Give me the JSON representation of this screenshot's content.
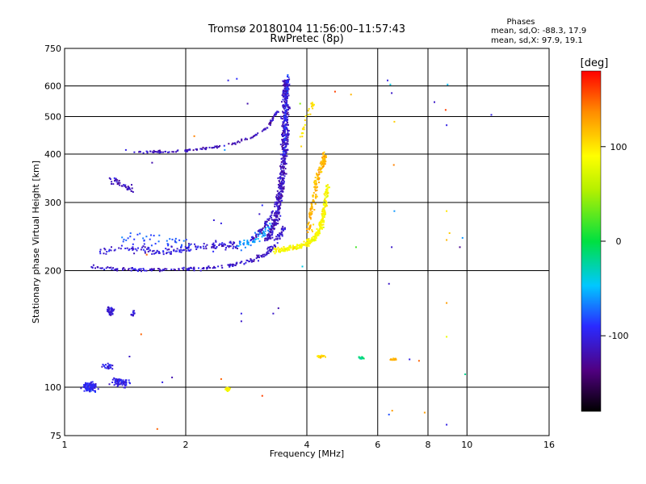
{
  "chart_data": {
    "type": "scatter",
    "title": "Tromsø 20180104 11:56:00–11:57:43",
    "subtitle": "RwPretec (8p)",
    "xlabel": "Frequency [MHz]",
    "ylabel": "Stationary phase Virtual Height [km]",
    "x_scale": "log",
    "y_scale": "log",
    "xlim": [
      1,
      16
    ],
    "ylim": [
      75,
      750
    ],
    "x_ticks": [
      1,
      2,
      4,
      6,
      8,
      10,
      16
    ],
    "x_tick_labels": [
      "1",
      "2",
      "4",
      "6",
      "8",
      "10",
      "16"
    ],
    "y_ticks": [
      75,
      100,
      200,
      300,
      400,
      500,
      600,
      750
    ],
    "y_tick_labels": [
      "75",
      "100",
      "200",
      "300",
      "400",
      "500",
      "600",
      "750"
    ],
    "grid": true,
    "stats": {
      "heading": "Phases",
      "o_line": "mean, sd,O:  -88.3, 17.9",
      "x_line": "mean, sd,X:  97.9, 19.1"
    },
    "colorbar": {
      "label": "[deg]",
      "range": [
        -180,
        180
      ],
      "ticks": [
        100,
        0,
        -100
      ],
      "tick_labels": [
        "100",
        "0",
        "-100"
      ],
      "placement": "right"
    },
    "traces": [
      {
        "type": "curve",
        "f": [
          1.18,
          1.35,
          1.55,
          1.8,
          2.1,
          2.5,
          2.9,
          3.2,
          3.4,
          3.5
        ],
        "h": [
          205,
          202,
          201,
          201,
          202,
          205,
          212,
          222,
          240,
          260
        ],
        "phase": -110,
        "n": 220,
        "jf": 0.025,
        "jh": 0.015
      },
      {
        "type": "curve",
        "f": [
          1.2,
          1.4,
          1.6,
          1.8,
          2.0,
          2.2,
          2.4,
          2.7
        ],
        "h": [
          225,
          228,
          226,
          224,
          228,
          230,
          233,
          232
        ],
        "phase": -105,
        "n": 160,
        "jf": 0.04,
        "jh": 0.04
      },
      {
        "type": "curve",
        "f": [
          1.4,
          1.55,
          1.75,
          1.9,
          2.05
        ],
        "h": [
          245,
          240,
          238,
          238,
          236
        ],
        "phase": -80,
        "n": 40,
        "jf": 0.04,
        "jh": 0.05
      },
      {
        "type": "curve",
        "f": [
          2.6,
          2.9,
          3.1,
          3.3
        ],
        "h": [
          228,
          235,
          250,
          268
        ],
        "phase": -60,
        "n": 60,
        "jf": 0.02,
        "jh": 0.04
      },
      {
        "type": "curve",
        "f": [
          2.9,
          3.1,
          3.3,
          3.45,
          3.55,
          3.6
        ],
        "h": [
          240,
          255,
          285,
          330,
          400,
          470
        ],
        "phase": -112,
        "n": 100,
        "jf": 0.015,
        "jh": 0.02
      },
      {
        "type": "curve",
        "f": [
          3.2,
          3.35,
          3.45,
          3.5,
          3.52,
          3.54,
          3.55,
          3.56
        ],
        "h": [
          240,
          270,
          320,
          380,
          450,
          520,
          580,
          620
        ],
        "phase": -115,
        "n": 520,
        "jf": 0.028,
        "jh": 0.02
      },
      {
        "type": "curve",
        "f": [
          3.52,
          3.54,
          3.55,
          3.57,
          3.6
        ],
        "h": [
          400,
          470,
          530,
          600,
          640
        ],
        "phase": -90,
        "n": 60,
        "jf": 0.012,
        "jh": 0.02
      },
      {
        "type": "curve",
        "f": [
          1.5,
          1.8,
          2.1,
          2.5,
          2.9,
          3.2,
          3.4
        ],
        "h": [
          405,
          405,
          410,
          420,
          440,
          470,
          520
        ],
        "phase": -115,
        "n": 130,
        "jf": 0.012,
        "jh": 0.01
      },
      {
        "type": "curve",
        "f": [
          1.3,
          1.38,
          1.48
        ],
        "h": [
          345,
          335,
          320
        ],
        "phase": -115,
        "n": 40,
        "jf": 0.02,
        "jh": 0.03
      },
      {
        "type": "curve",
        "f": [
          3.3,
          3.6,
          3.9,
          4.15,
          4.3,
          4.4,
          4.45,
          4.5
        ],
        "h": [
          225,
          228,
          232,
          240,
          255,
          275,
          300,
          330
        ],
        "phase": 90,
        "n": 320,
        "jf": 0.02,
        "jh": 0.022
      },
      {
        "type": "curve",
        "f": [
          4.05,
          4.12,
          4.2,
          4.3,
          4.38,
          4.45
        ],
        "h": [
          250,
          290,
          330,
          360,
          380,
          400
        ],
        "phase": 120,
        "n": 150,
        "jf": 0.022,
        "jh": 0.035
      },
      {
        "type": "curve",
        "f": [
          3.85,
          3.95,
          4.05,
          4.15
        ],
        "h": [
          430,
          480,
          510,
          550
        ],
        "phase": 100,
        "n": 25,
        "jf": 0.015,
        "jh": 0.04
      },
      {
        "type": "blob",
        "f": 1.16,
        "h": 100,
        "rf": 0.06,
        "rh": 0.04,
        "phase": -95,
        "n": 90
      },
      {
        "type": "blob",
        "f": 1.38,
        "h": 103,
        "rf": 0.08,
        "rh": 0.04,
        "phase": -100,
        "n": 70
      },
      {
        "type": "blob",
        "f": 1.28,
        "h": 113,
        "rf": 0.05,
        "rh": 0.03,
        "phase": -100,
        "n": 25
      },
      {
        "type": "blob",
        "f": 1.3,
        "h": 157,
        "rf": 0.025,
        "rh": 0.04,
        "phase": -105,
        "n": 45
      },
      {
        "type": "blob",
        "f": 1.48,
        "h": 155,
        "rf": 0.02,
        "rh": 0.03,
        "phase": -105,
        "n": 14
      },
      {
        "type": "blob",
        "f": 2.55,
        "h": 99,
        "rf": 0.02,
        "rh": 0.015,
        "phase": 90,
        "n": 30
      },
      {
        "type": "blob",
        "f": 4.35,
        "h": 120,
        "rf": 0.03,
        "rh": 0.01,
        "phase": 105,
        "n": 20
      },
      {
        "type": "blob",
        "f": 5.45,
        "h": 119,
        "rf": 0.03,
        "rh": 0.008,
        "phase": -20,
        "n": 15
      },
      {
        "type": "blob",
        "f": 6.6,
        "h": 118,
        "rf": 0.03,
        "rh": 0.008,
        "phase": 130,
        "n": 15
      }
    ],
    "points": [
      {
        "f": 2.55,
        "h": 620,
        "phase": -100
      },
      {
        "f": 2.68,
        "h": 626,
        "phase": -90
      },
      {
        "f": 2.85,
        "h": 540,
        "phase": -120
      },
      {
        "f": 6.35,
        "h": 620,
        "phase": -100
      },
      {
        "f": 6.45,
        "h": 605,
        "phase": -40
      },
      {
        "f": 6.5,
        "h": 575,
        "phase": -110
      },
      {
        "f": 6.6,
        "h": 485,
        "phase": 110
      },
      {
        "f": 6.58,
        "h": 375,
        "phase": 140
      },
      {
        "f": 6.6,
        "h": 285,
        "phase": -60
      },
      {
        "f": 6.5,
        "h": 230,
        "phase": -110
      },
      {
        "f": 6.4,
        "h": 185,
        "phase": -110
      },
      {
        "f": 6.4,
        "h": 85,
        "phase": -80
      },
      {
        "f": 6.52,
        "h": 87,
        "phase": 130
      },
      {
        "f": 7.85,
        "h": 86,
        "phase": 130
      },
      {
        "f": 8.3,
        "h": 545,
        "phase": -110
      },
      {
        "f": 8.85,
        "h": 520,
        "phase": 160
      },
      {
        "f": 8.9,
        "h": 475,
        "phase": -100
      },
      {
        "f": 8.95,
        "h": 605,
        "phase": -50
      },
      {
        "f": 8.9,
        "h": 285,
        "phase": 100
      },
      {
        "f": 8.9,
        "h": 240,
        "phase": 120
      },
      {
        "f": 9.05,
        "h": 250,
        "phase": 110
      },
      {
        "f": 9.6,
        "h": 230,
        "phase": -130
      },
      {
        "f": 9.75,
        "h": 243,
        "phase": -60
      },
      {
        "f": 8.9,
        "h": 165,
        "phase": 130
      },
      {
        "f": 8.9,
        "h": 135,
        "phase": 80
      },
      {
        "f": 9.9,
        "h": 108,
        "phase": -20
      },
      {
        "f": 8.9,
        "h": 80,
        "phase": -100
      },
      {
        "f": 11.5,
        "h": 505,
        "phase": -100
      },
      {
        "f": 5.3,
        "h": 230,
        "phase": 20
      },
      {
        "f": 3.9,
        "h": 205,
        "phase": -40
      },
      {
        "f": 3.85,
        "h": 540,
        "phase": 40
      },
      {
        "f": 4.7,
        "h": 580,
        "phase": 160
      },
      {
        "f": 5.15,
        "h": 570,
        "phase": 120
      },
      {
        "f": 3.1,
        "h": 295,
        "phase": -90
      },
      {
        "f": 3.05,
        "h": 280,
        "phase": -110
      },
      {
        "f": 2.1,
        "h": 445,
        "phase": 140
      },
      {
        "f": 1.82,
        "h": 405,
        "phase": -100
      },
      {
        "f": 2.5,
        "h": 410,
        "phase": -60
      },
      {
        "f": 1.65,
        "h": 380,
        "phase": -120
      },
      {
        "f": 1.42,
        "h": 410,
        "phase": -100
      },
      {
        "f": 2.75,
        "h": 148,
        "phase": -110
      },
      {
        "f": 2.75,
        "h": 155,
        "phase": -100
      },
      {
        "f": 3.3,
        "h": 155,
        "phase": -110
      },
      {
        "f": 3.4,
        "h": 160,
        "phase": -120
      },
      {
        "f": 2.45,
        "h": 105,
        "phase": 150
      },
      {
        "f": 3.1,
        "h": 95,
        "phase": 160
      },
      {
        "f": 1.7,
        "h": 78,
        "phase": 150
      },
      {
        "f": 1.55,
        "h": 137,
        "phase": 150
      },
      {
        "f": 1.45,
        "h": 120,
        "phase": -110
      },
      {
        "f": 1.75,
        "h": 103,
        "phase": -100
      },
      {
        "f": 1.85,
        "h": 106,
        "phase": -120
      },
      {
        "f": 1.6,
        "h": 220,
        "phase": 150
      },
      {
        "f": 2.45,
        "h": 265,
        "phase": -100
      },
      {
        "f": 2.35,
        "h": 270,
        "phase": -105
      },
      {
        "f": 7.6,
        "h": 117,
        "phase": 150
      },
      {
        "f": 7.2,
        "h": 118,
        "phase": -100
      }
    ]
  }
}
